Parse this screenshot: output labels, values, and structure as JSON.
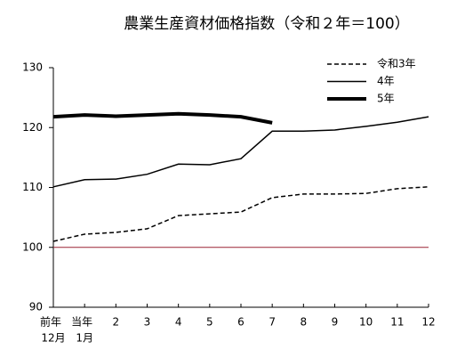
{
  "chart_data": {
    "type": "line",
    "title": "農業生産資材価格指数（令和２年＝100）",
    "categories": [
      [
        "前年",
        "12月"
      ],
      [
        "当年",
        "1月"
      ],
      "2",
      "3",
      "4",
      "5",
      "6",
      "7",
      "8",
      "9",
      "10",
      "11",
      "12"
    ],
    "series": [
      {
        "name": "令和3年",
        "color": "#000000",
        "dash": true,
        "width": 1.5,
        "values": [
          101.0,
          102.2,
          102.5,
          103.1,
          105.3,
          105.6,
          105.9,
          108.3,
          108.9,
          108.9,
          109.0,
          109.8,
          110.1
        ]
      },
      {
        "name": "4年",
        "color": "#000000",
        "dash": false,
        "width": 1.5,
        "values": [
          110.1,
          111.3,
          111.4,
          112.2,
          113.9,
          113.8,
          114.8,
          119.4,
          119.4,
          119.6,
          120.2,
          120.9,
          121.8
        ]
      },
      {
        "name": "5年",
        "color": "#000000",
        "dash": false,
        "width": 4,
        "values": [
          121.8,
          122.1,
          121.9,
          122.1,
          122.3,
          122.1,
          121.8,
          120.8,
          null,
          null,
          null,
          null,
          null
        ]
      }
    ],
    "ylim": [
      90,
      130
    ],
    "yticks": [
      90,
      100,
      110,
      120,
      130
    ],
    "reference_line": {
      "value": 100,
      "color": "#9b2335"
    },
    "legend": "upper right"
  }
}
